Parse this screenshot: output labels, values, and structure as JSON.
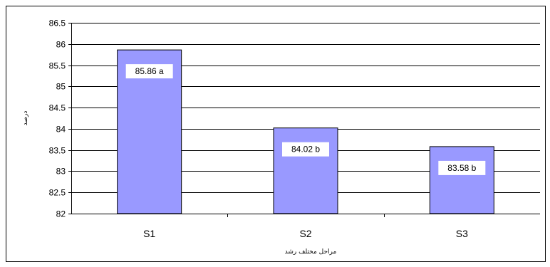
{
  "chart_data": {
    "type": "bar",
    "categories": [
      "S1",
      "S2",
      "S3"
    ],
    "values": [
      85.86,
      84.02,
      83.58
    ],
    "data_labels": [
      "85.86 a",
      "84.02 b",
      "83.58 b"
    ],
    "title": "",
    "xlabel": "مراحل مختلف رشد",
    "ylabel": "درصد",
    "ylim": [
      82,
      86.5
    ],
    "yticks": [
      "82",
      "82.5",
      "83",
      "83.5",
      "84",
      "84.5",
      "85",
      "85.5",
      "86",
      "86.5"
    ],
    "grid": true,
    "legend": "none",
    "colors": {
      "bar": "#9999ff",
      "bar_edge": "#000000",
      "grid": "#000000",
      "label_box": "#ffffff"
    }
  }
}
